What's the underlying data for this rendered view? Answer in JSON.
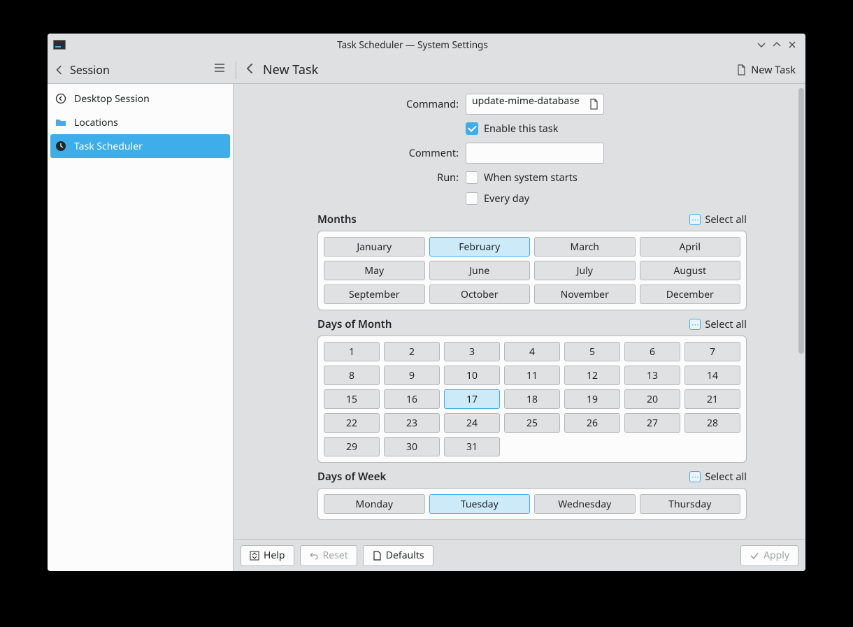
{
  "window": {
    "title": "Task Scheduler — System Settings"
  },
  "toolbar": {
    "session_label": "Session",
    "heading": "New Task",
    "new_task_label": "New Task"
  },
  "sidebar": {
    "items": [
      {
        "label": "Desktop Session",
        "icon": "back-circle",
        "selected": false
      },
      {
        "label": "Locations",
        "icon": "folder",
        "selected": false
      },
      {
        "label": "Task Scheduler",
        "icon": "clock",
        "selected": true
      }
    ]
  },
  "form": {
    "command_label": "Command:",
    "command_value": "update-mime-database",
    "enable_label": "Enable this task",
    "enable_checked": true,
    "comment_label": "Comment:",
    "comment_value": "",
    "run_label": "Run:",
    "when_system_starts_label": "When system starts",
    "when_system_starts_checked": false,
    "every_day_label": "Every day",
    "every_day_checked": false
  },
  "months": {
    "title": "Months",
    "select_all": "Select all",
    "items": [
      {
        "label": "January",
        "sel": false
      },
      {
        "label": "February",
        "sel": true
      },
      {
        "label": "March",
        "sel": false
      },
      {
        "label": "April",
        "sel": false
      },
      {
        "label": "May",
        "sel": false
      },
      {
        "label": "June",
        "sel": false
      },
      {
        "label": "July",
        "sel": false
      },
      {
        "label": "August",
        "sel": false
      },
      {
        "label": "September",
        "sel": false
      },
      {
        "label": "October",
        "sel": false
      },
      {
        "label": "November",
        "sel": false
      },
      {
        "label": "December",
        "sel": false
      }
    ]
  },
  "days_of_month": {
    "title": "Days of Month",
    "select_all": "Select all",
    "items": [
      {
        "label": "1",
        "sel": false
      },
      {
        "label": "2",
        "sel": false
      },
      {
        "label": "3",
        "sel": false
      },
      {
        "label": "4",
        "sel": false
      },
      {
        "label": "5",
        "sel": false
      },
      {
        "label": "6",
        "sel": false
      },
      {
        "label": "7",
        "sel": false
      },
      {
        "label": "8",
        "sel": false
      },
      {
        "label": "9",
        "sel": false
      },
      {
        "label": "10",
        "sel": false
      },
      {
        "label": "11",
        "sel": false
      },
      {
        "label": "12",
        "sel": false
      },
      {
        "label": "13",
        "sel": false
      },
      {
        "label": "14",
        "sel": false
      },
      {
        "label": "15",
        "sel": false
      },
      {
        "label": "16",
        "sel": false
      },
      {
        "label": "17",
        "sel": true
      },
      {
        "label": "18",
        "sel": false
      },
      {
        "label": "19",
        "sel": false
      },
      {
        "label": "20",
        "sel": false
      },
      {
        "label": "21",
        "sel": false
      },
      {
        "label": "22",
        "sel": false
      },
      {
        "label": "23",
        "sel": false
      },
      {
        "label": "24",
        "sel": false
      },
      {
        "label": "25",
        "sel": false
      },
      {
        "label": "26",
        "sel": false
      },
      {
        "label": "27",
        "sel": false
      },
      {
        "label": "28",
        "sel": false
      },
      {
        "label": "29",
        "sel": false
      },
      {
        "label": "30",
        "sel": false
      },
      {
        "label": "31",
        "sel": false
      }
    ]
  },
  "days_of_week": {
    "title": "Days of Week",
    "select_all": "Select all",
    "items": [
      {
        "label": "Monday",
        "sel": false
      },
      {
        "label": "Tuesday",
        "sel": true
      },
      {
        "label": "Wednesday",
        "sel": false
      },
      {
        "label": "Thursday",
        "sel": false
      }
    ]
  },
  "footer": {
    "help": "Help",
    "reset": "Reset",
    "defaults": "Defaults",
    "apply": "Apply",
    "reset_enabled": false,
    "apply_enabled": false
  },
  "colors": {
    "accent": "#3daee9",
    "window_bg": "#dee0e2",
    "panel_bg": "#fcfcfc",
    "border": "#b4b6b8",
    "toggle_bg": "#dfe1e3",
    "toggle_sel_bg": "#cdeaf9"
  }
}
